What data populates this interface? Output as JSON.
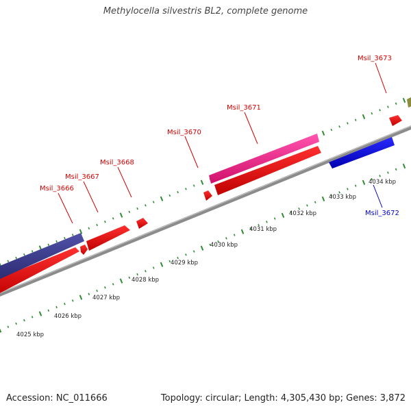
{
  "title": "Methylocella silvestris BL2, complete genome",
  "footer": {
    "accession": "Accession: NC_011666",
    "summary": "Topology: circular; Length: 4,305,430 bp; Genes: 3,872"
  },
  "colors": {
    "backbone": "#8c8c8c",
    "tick": "#2e8b2e",
    "cds_forward": "#ff0000",
    "cds_reverse": "#0000ff",
    "label_forward": "#d40000",
    "label_reverse": "#0000c8",
    "rna": "#ff1493",
    "cog_dark": "#3c3c8c",
    "olive": "#8c8c3c"
  },
  "scale_labels": [
    "4025 kbp",
    "4026 kbp",
    "4027 kbp",
    "4028 kbp",
    "4029 kbp",
    "4030 kbp",
    "4031 kbp",
    "4032 kbp",
    "4033 kbp",
    "4034 kbp"
  ],
  "gene_labels": [
    {
      "name": "Msil_3666",
      "strand": "forward"
    },
    {
      "name": "Msil_3667",
      "strand": "forward"
    },
    {
      "name": "Msil_3668",
      "strand": "forward"
    },
    {
      "name": "Msil_3670",
      "strand": "forward"
    },
    {
      "name": "Msil_3671",
      "strand": "forward"
    },
    {
      "name": "Msil_3673",
      "strand": "forward"
    },
    {
      "name": "Msil_3672",
      "strand": "reverse"
    }
  ]
}
